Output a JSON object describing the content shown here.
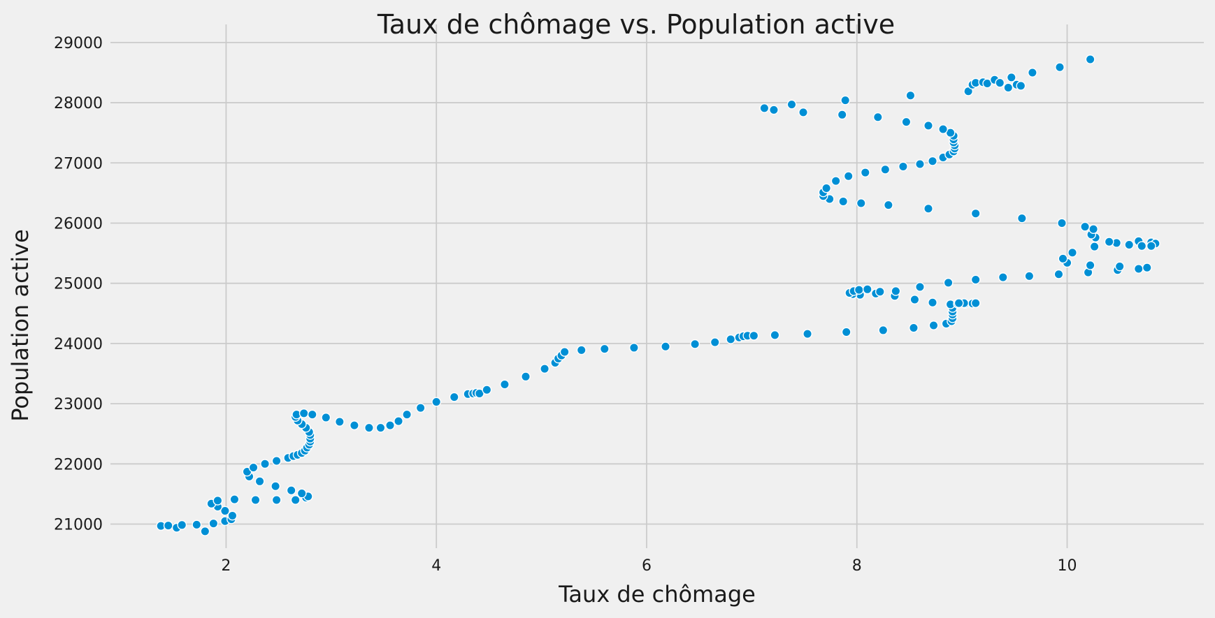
{
  "chart_data": {
    "type": "scatter",
    "title": "Taux de chômage vs. Population active",
    "xlabel": "Taux de chômage",
    "ylabel": "Population active",
    "xlim": [
      0.9,
      11.3
    ],
    "ylim": [
      20600,
      29300
    ],
    "x_ticks": [
      2,
      4,
      6,
      8,
      10
    ],
    "y_ticks": [
      21000,
      22000,
      23000,
      24000,
      25000,
      26000,
      27000,
      28000,
      29000
    ],
    "grid": true,
    "colors": {
      "background": "#f0f0f0",
      "grid": "#cbcbcb",
      "marker": "#008fd5",
      "marker_edge": "#ffffff"
    },
    "points": [
      [
        1.38,
        20970
      ],
      [
        1.45,
        20975
      ],
      [
        1.53,
        20940
      ],
      [
        1.58,
        20985
      ],
      [
        1.72,
        20990
      ],
      [
        1.8,
        20880
      ],
      [
        1.88,
        21010
      ],
      [
        1.99,
        21050
      ],
      [
        2.05,
        21080
      ],
      [
        2.06,
        21140
      ],
      [
        1.99,
        21220
      ],
      [
        1.92,
        21290
      ],
      [
        1.86,
        21340
      ],
      [
        1.92,
        21390
      ],
      [
        2.08,
        21410
      ],
      [
        2.28,
        21400
      ],
      [
        2.48,
        21400
      ],
      [
        2.66,
        21400
      ],
      [
        2.76,
        21440
      ],
      [
        2.78,
        21460
      ],
      [
        2.72,
        21510
      ],
      [
        2.62,
        21560
      ],
      [
        2.47,
        21630
      ],
      [
        2.32,
        21710
      ],
      [
        2.22,
        21790
      ],
      [
        2.2,
        21870
      ],
      [
        2.26,
        21940
      ],
      [
        2.37,
        22000
      ],
      [
        2.48,
        22050
      ],
      [
        2.59,
        22100
      ],
      [
        2.64,
        22130
      ],
      [
        2.68,
        22150
      ],
      [
        2.72,
        22180
      ],
      [
        2.75,
        22220
      ],
      [
        2.77,
        22270
      ],
      [
        2.79,
        22320
      ],
      [
        2.8,
        22370
      ],
      [
        2.8,
        22420
      ],
      [
        2.8,
        22480
      ],
      [
        2.79,
        22530
      ],
      [
        2.76,
        22600
      ],
      [
        2.72,
        22660
      ],
      [
        2.68,
        22720
      ],
      [
        2.66,
        22780
      ],
      [
        2.67,
        22820
      ],
      [
        2.74,
        22840
      ],
      [
        2.82,
        22820
      ],
      [
        2.95,
        22770
      ],
      [
        3.08,
        22700
      ],
      [
        3.22,
        22640
      ],
      [
        3.36,
        22600
      ],
      [
        3.47,
        22600
      ],
      [
        3.56,
        22640
      ],
      [
        3.64,
        22710
      ],
      [
        3.72,
        22820
      ],
      [
        3.85,
        22930
      ],
      [
        4.0,
        23030
      ],
      [
        4.17,
        23110
      ],
      [
        4.3,
        23160
      ],
      [
        4.35,
        23170
      ],
      [
        4.38,
        23180
      ],
      [
        4.41,
        23170
      ],
      [
        4.48,
        23230
      ],
      [
        4.65,
        23320
      ],
      [
        4.85,
        23450
      ],
      [
        5.03,
        23580
      ],
      [
        5.13,
        23680
      ],
      [
        5.16,
        23750
      ],
      [
        5.19,
        23800
      ],
      [
        5.22,
        23860
      ],
      [
        5.38,
        23890
      ],
      [
        5.6,
        23910
      ],
      [
        5.88,
        23930
      ],
      [
        6.18,
        23950
      ],
      [
        6.46,
        23990
      ],
      [
        6.65,
        24020
      ],
      [
        6.8,
        24070
      ],
      [
        6.88,
        24100
      ],
      [
        6.92,
        24120
      ],
      [
        6.96,
        24130
      ],
      [
        7.02,
        24130
      ],
      [
        7.22,
        24140
      ],
      [
        7.53,
        24160
      ],
      [
        7.9,
        24190
      ],
      [
        8.25,
        24220
      ],
      [
        8.54,
        24260
      ],
      [
        8.73,
        24300
      ],
      [
        8.85,
        24330
      ],
      [
        8.9,
        24370
      ],
      [
        8.91,
        24420
      ],
      [
        8.91,
        24480
      ],
      [
        8.91,
        24530
      ],
      [
        8.91,
        24590
      ],
      [
        8.89,
        24650
      ],
      [
        8.96,
        24660
      ],
      [
        9.03,
        24660
      ],
      [
        9.1,
        24665
      ],
      [
        9.13,
        24670
      ],
      [
        9.02,
        24670
      ],
      [
        8.97,
        24670
      ],
      [
        8.72,
        24680
      ],
      [
        8.55,
        24730
      ],
      [
        8.36,
        24790
      ],
      [
        8.18,
        24830
      ],
      [
        8.03,
        24810
      ],
      [
        7.96,
        24820
      ],
      [
        7.93,
        24840
      ],
      [
        7.97,
        24870
      ],
      [
        8.02,
        24890
      ],
      [
        8.1,
        24900
      ],
      [
        8.22,
        24860
      ],
      [
        8.37,
        24870
      ],
      [
        8.6,
        24940
      ],
      [
        8.87,
        25010
      ],
      [
        9.13,
        25060
      ],
      [
        9.39,
        25100
      ],
      [
        9.64,
        25120
      ],
      [
        9.92,
        25150
      ],
      [
        10.2,
        25180
      ],
      [
        10.48,
        25220
      ],
      [
        10.68,
        25240
      ],
      [
        10.76,
        25260
      ],
      [
        10.5,
        25280
      ],
      [
        10.22,
        25300
      ],
      [
        10.0,
        25340
      ],
      [
        9.96,
        25410
      ],
      [
        10.05,
        25510
      ],
      [
        10.26,
        25610
      ],
      [
        10.47,
        25670
      ],
      [
        10.68,
        25700
      ],
      [
        10.8,
        25680
      ],
      [
        10.84,
        25660
      ],
      [
        10.8,
        25620
      ],
      [
        10.71,
        25620
      ],
      [
        10.59,
        25640
      ],
      [
        10.4,
        25690
      ],
      [
        10.27,
        25760
      ],
      [
        10.23,
        25810
      ],
      [
        10.25,
        25900
      ],
      [
        10.17,
        25940
      ],
      [
        9.95,
        26000
      ],
      [
        9.57,
        26080
      ],
      [
        9.13,
        26160
      ],
      [
        8.68,
        26240
      ],
      [
        8.3,
        26300
      ],
      [
        8.04,
        26330
      ],
      [
        7.87,
        26360
      ],
      [
        7.74,
        26400
      ],
      [
        7.68,
        26450
      ],
      [
        7.68,
        26510
      ],
      [
        7.71,
        26580
      ],
      [
        7.8,
        26700
      ],
      [
        7.92,
        26780
      ],
      [
        8.08,
        26840
      ],
      [
        8.27,
        26890
      ],
      [
        8.44,
        26940
      ],
      [
        8.6,
        26980
      ],
      [
        8.72,
        27030
      ],
      [
        8.82,
        27090
      ],
      [
        8.88,
        27140
      ],
      [
        8.92,
        27190
      ],
      [
        8.93,
        27240
      ],
      [
        8.93,
        27290
      ],
      [
        8.92,
        27340
      ],
      [
        8.92,
        27390
      ],
      [
        8.92,
        27450
      ],
      [
        8.89,
        27500
      ],
      [
        8.82,
        27560
      ],
      [
        8.68,
        27620
      ],
      [
        8.47,
        27680
      ],
      [
        8.2,
        27760
      ],
      [
        7.86,
        27800
      ],
      [
        7.49,
        27840
      ],
      [
        7.21,
        27880
      ],
      [
        7.12,
        27910
      ],
      [
        7.38,
        27970
      ],
      [
        7.89,
        28040
      ],
      [
        8.51,
        28120
      ],
      [
        9.06,
        28190
      ],
      [
        9.1,
        28300
      ],
      [
        9.13,
        28330
      ],
      [
        9.2,
        28340
      ],
      [
        9.24,
        28320
      ],
      [
        9.31,
        28380
      ],
      [
        9.36,
        28330
      ],
      [
        9.44,
        28250
      ],
      [
        9.52,
        28300
      ],
      [
        9.56,
        28280
      ],
      [
        9.47,
        28420
      ],
      [
        9.67,
        28500
      ],
      [
        9.93,
        28590
      ],
      [
        10.22,
        28720
      ]
    ]
  }
}
